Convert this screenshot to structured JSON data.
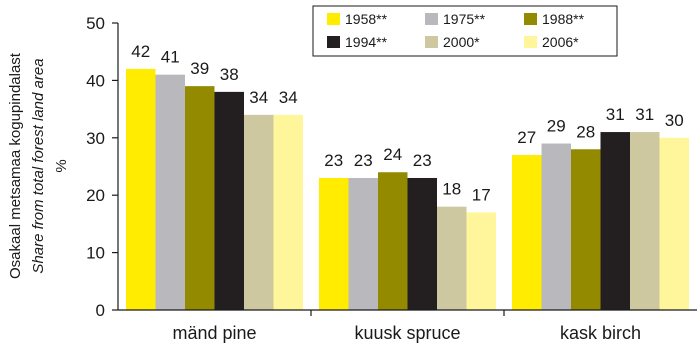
{
  "chart_data": {
    "type": "bar",
    "categories": [
      "mänd pine",
      "kuusk spruce",
      "kask birch"
    ],
    "series": [
      {
        "name": "1958**",
        "color": "#ffec00",
        "values": [
          42,
          23,
          27
        ]
      },
      {
        "name": "1975**",
        "color": "#b9b9bd",
        "values": [
          41,
          23,
          29
        ]
      },
      {
        "name": "1988**",
        "color": "#948a00",
        "values": [
          39,
          24,
          28
        ]
      },
      {
        "name": "1994**",
        "color": "#231f20",
        "values": [
          38,
          23,
          31
        ]
      },
      {
        "name": "2000*",
        "color": "#cdc8a0",
        "values": [
          34,
          18,
          31
        ]
      },
      {
        "name": "2006*",
        "color": "#fff59a",
        "values": [
          34,
          17,
          30
        ]
      }
    ],
    "ylabel_lines": [
      "Osakaal metsamaa kogupindalast",
      "Share from total forest land area",
      "%"
    ],
    "ylim": [
      0,
      50
    ],
    "yticks": [
      0,
      10,
      20,
      30,
      40,
      50
    ],
    "grid": false,
    "legend": "top-right"
  }
}
